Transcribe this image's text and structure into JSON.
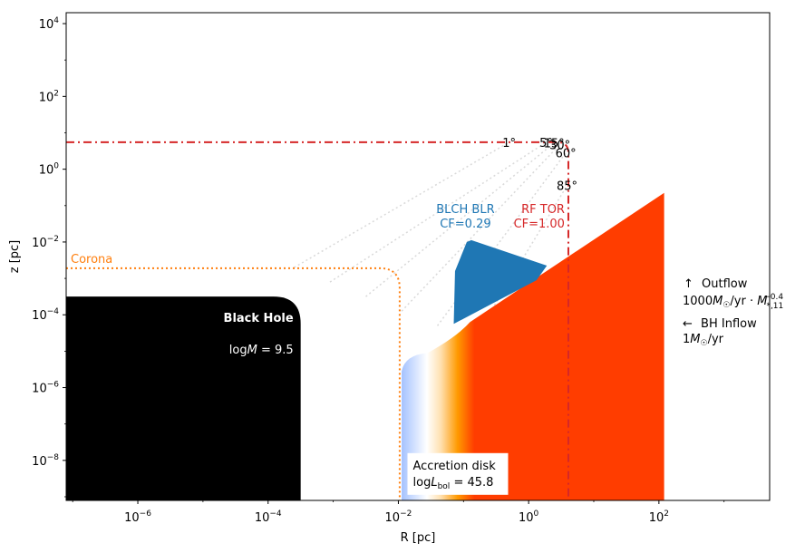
{
  "chart_data": {
    "type": "diagram-loglog",
    "xlabel": "R [pc]",
    "ylabel": "z [pc]",
    "xscale": "log",
    "yscale": "log",
    "xlim_log10": [
      -7.1,
      3.7
    ],
    "ylim_log10": [
      -9.1,
      4.3
    ],
    "x_ticks": [
      {
        "log": -6,
        "base": "10",
        "exp": "−6"
      },
      {
        "log": -4,
        "base": "10",
        "exp": "−4"
      },
      {
        "log": -2,
        "base": "10",
        "exp": "−2"
      },
      {
        "log": 0,
        "base": "10",
        "exp": "0"
      },
      {
        "log": 2,
        "base": "10",
        "exp": "2"
      }
    ],
    "y_ticks": [
      {
        "log": -8,
        "base": "10",
        "exp": "−8"
      },
      {
        "log": -6,
        "base": "10",
        "exp": "−6"
      },
      {
        "log": -4,
        "base": "10",
        "exp": "−4"
      },
      {
        "log": -2,
        "base": "10",
        "exp": "−2"
      },
      {
        "log": 0,
        "base": "10",
        "exp": "0"
      },
      {
        "log": 2,
        "base": "10",
        "exp": "2"
      },
      {
        "log": 4,
        "base": "10",
        "exp": "4"
      }
    ],
    "black_hole": {
      "label": "Black Hole",
      "mass_label_prefix": "log",
      "mass_label_var": "M",
      "mass_label_value": " = 9.5",
      "r_max_log": -3.5,
      "z_max_log": -3.5,
      "color": "#000000"
    },
    "corona": {
      "label": "Corona",
      "z_log": -2.72,
      "r_log": -1.98,
      "color": "#ff7f0e"
    },
    "accretion_disk": {
      "label_line1": "Accretion disk",
      "label_line2_prefix": "log",
      "label_line2_var": "L",
      "label_line2_sub": "bol",
      "label_line2_value": " = 45.8",
      "r_in_log": -1.95,
      "r_out_log": 2.08,
      "z_in_log": -5.8,
      "z_mid_log": -3.75,
      "z_out_log": -0.65,
      "gradient": [
        "#a4c2ff",
        "#ffffff",
        "#ffe0b0",
        "#ff9900",
        "#ff3d00",
        "#ff3d00"
      ]
    },
    "blr": {
      "label_line1": "BLCH BLR",
      "label_line2": "CF=0.29",
      "color": "#1f77b4",
      "vertices_log": [
        [
          -1.13,
          -2.8
        ],
        [
          -0.95,
          -2.0
        ],
        [
          -0.88,
          -1.95
        ],
        [
          0.28,
          -2.65
        ],
        [
          0.12,
          -3.05
        ],
        [
          -1.15,
          -4.25
        ]
      ]
    },
    "torus": {
      "label_line1": "RF TOR",
      "label_line2": "CF=1.00",
      "color": "#d62728",
      "r_log": 0.61,
      "z_top_log": 0.74
    },
    "angles": [
      {
        "label": "1°",
        "r_log": -0.3,
        "z_log": 0.74
      },
      {
        "label": "5°",
        "r_log": 0.27,
        "z_log": 0.74
      },
      {
        "label": "15°",
        "r_log": 0.39,
        "z_log": 0.72
      },
      {
        "label": "30°",
        "r_log": 0.48,
        "z_log": 0.68
      },
      {
        "label": "60°",
        "r_log": 0.57,
        "z_log": 0.45
      },
      {
        "label": "85°",
        "r_log": 0.59,
        "z_log": -0.45
      }
    ],
    "legend_text": {
      "outflow_arrow": "↑",
      "outflow_label": "Outflow",
      "outflow_rate_prefix": "1000",
      "outflow_rate_sym": "M",
      "outflow_rate_sub": "☉",
      "outflow_rate_mid": "/yr · ",
      "outflow_rate_var": "M",
      "outflow_rate_sub2": "*,11",
      "outflow_rate_exp": "−0.4",
      "inflow_arrow": "←",
      "inflow_label": "BH Inflow",
      "inflow_rate_prefix": "1",
      "inflow_rate_sym": "M",
      "inflow_rate_sub": "☉",
      "inflow_rate_suffix": "/yr"
    },
    "colors": {
      "blr_label": "#1f77b4",
      "torus_label": "#d62728",
      "corona_label": "#ff7f0e",
      "sightline": "#d9d9d9"
    }
  }
}
